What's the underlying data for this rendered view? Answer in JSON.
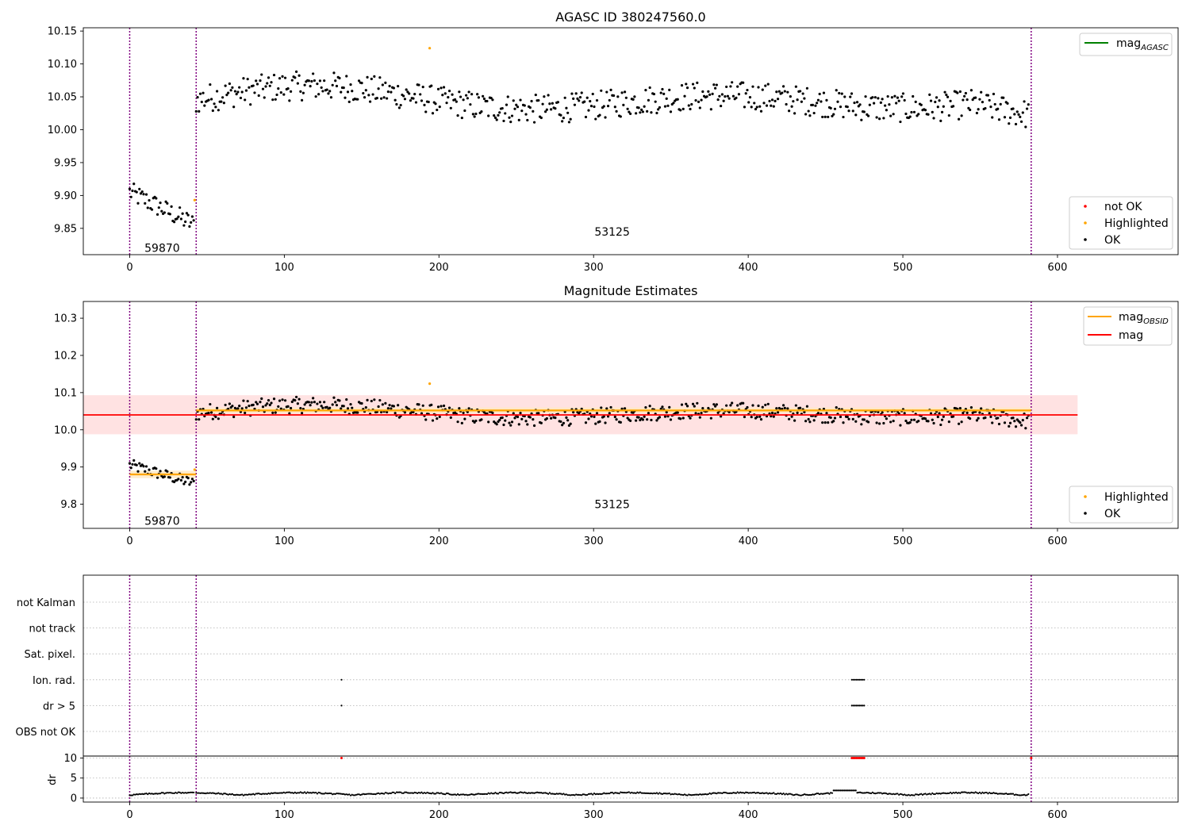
{
  "chart_data": [
    {
      "id": "top",
      "type": "scatter",
      "title": "AGASC ID 380247560.0",
      "xlim": [
        -30,
        678
      ],
      "ylim": [
        9.81,
        10.155
      ],
      "xticks": [
        0,
        100,
        200,
        300,
        400,
        500,
        600
      ],
      "yticks": [
        9.85,
        9.9,
        9.95,
        10.0,
        10.05,
        10.1,
        10.15
      ],
      "ytick_labels": [
        "9.85",
        "9.90",
        "9.95",
        "10.00",
        "10.05",
        "10.10",
        "10.15"
      ],
      "obs_boundaries": [
        0,
        43,
        583
      ],
      "obs_labels": [
        {
          "text": "59870",
          "x": 21,
          "y": 9.82
        },
        {
          "text": "53125",
          "x": 312,
          "y": 9.845
        }
      ],
      "highlighted": [
        [
          42,
          9.893
        ],
        [
          194,
          10.124
        ]
      ],
      "legend_line": {
        "label": "mag",
        "sub": "AGASC",
        "color": "#008000"
      },
      "legend_points": [
        {
          "label": "not OK",
          "color": "#ff0000"
        },
        {
          "label": "Highlighted",
          "color": "#ffa500"
        },
        {
          "label": "OK",
          "color": "#000000"
        }
      ],
      "segments": [
        {
          "x0": 0,
          "x1": 42,
          "y0": 9.905,
          "y1": 9.855,
          "spread": 0.016,
          "step": 0.9
        },
        {
          "x0": 43,
          "x1": 582,
          "y_base": 10.045,
          "wave": 0.027,
          "spread": 0.022,
          "step": 0.9
        }
      ]
    },
    {
      "id": "mid",
      "type": "scatter",
      "title": "Magnitude Estimates",
      "xlim": [
        -30,
        678
      ],
      "ylim": [
        9.735,
        10.345
      ],
      "xticks": [
        0,
        100,
        200,
        300,
        400,
        500,
        600
      ],
      "yticks": [
        9.8,
        9.9,
        10.0,
        10.1,
        10.2,
        10.3
      ],
      "ytick_labels": [
        "9.8",
        "9.9",
        "10.0",
        "10.1",
        "10.2",
        "10.3"
      ],
      "obs_boundaries": [
        0,
        43,
        583
      ],
      "obs_labels": [
        {
          "text": "59870",
          "x": 21,
          "y": 9.755
        },
        {
          "text": "53125",
          "x": 312,
          "y": 9.8
        }
      ],
      "mag": 10.04,
      "mag_band": [
        9.988,
        10.093
      ],
      "mag_band_x": [
        -30,
        613
      ],
      "obsid_mags": [
        {
          "x0": 0,
          "x1": 43,
          "value": 9.88,
          "band": [
            9.87,
            9.89
          ]
        },
        {
          "x0": 43,
          "x1": 583,
          "value": 10.052,
          "band": [
            10.045,
            10.06
          ]
        }
      ],
      "highlighted": [
        [
          42,
          9.893
        ],
        [
          194,
          10.124
        ]
      ],
      "legend_lines": [
        {
          "label": "mag",
          "sub": "OBSID",
          "color": "#ffa500"
        },
        {
          "label": "mag",
          "sub": "",
          "color": "#ff0000"
        }
      ],
      "legend_points": [
        {
          "label": "Highlighted",
          "color": "#ffa500"
        },
        {
          "label": "OK",
          "color": "#000000"
        }
      ]
    },
    {
      "id": "flags",
      "type": "scatter",
      "xlim": [
        -30,
        678
      ],
      "rows": [
        "not Kalman",
        "not track",
        "Sat. pixel.",
        "Ion. rad.",
        "dr > 5",
        "OBS not OK"
      ],
      "obs_boundaries": [
        0,
        43,
        583
      ],
      "flag_points": [
        {
          "row": "Ion. rad.",
          "x": [
            137,
            467,
            468,
            469,
            470,
            471,
            472,
            473,
            474,
            475
          ]
        },
        {
          "row": "dr > 5",
          "x": [
            137,
            467,
            468,
            469,
            470,
            471,
            472,
            473,
            474,
            475
          ]
        }
      ]
    },
    {
      "id": "dr",
      "type": "scatter",
      "ylabel": "dr",
      "xlim": [
        -30,
        678
      ],
      "ylim": [
        -1,
        10.5
      ],
      "xticks": [
        0,
        100,
        200,
        300,
        400,
        500,
        600
      ],
      "yticks": [
        0,
        5,
        10
      ],
      "ytick_labels": [
        "0",
        "5",
        "10"
      ],
      "obs_boundaries": [
        0,
        43,
        583
      ],
      "clipped_points": [
        137,
        467,
        468,
        469,
        470,
        471,
        472,
        473,
        474,
        475,
        583
      ]
    }
  ],
  "colors": {
    "boundary": "#800080",
    "ok": "#000000",
    "highlighted": "#ffa500",
    "not_ok": "#ff0000",
    "mag": "#ff0000",
    "mag_band": "#ffd6d6",
    "obsid": "#ffa500",
    "obsid_band": "#ffe9c2",
    "agasc": "#008000"
  }
}
